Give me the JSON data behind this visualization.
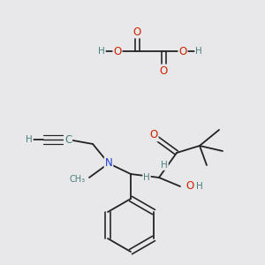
{
  "background_color": "#e8e8ea",
  "fig_width": 3.0,
  "fig_height": 3.0,
  "dpi": 100,
  "colors": {
    "C": "#4a8080",
    "O": "#cc2200",
    "N": "#1a3acc",
    "H": "#4a8080",
    "bond": "#222222"
  },
  "font_size_atom": 8.5,
  "font_size_h": 7.5,
  "font_size_small": 7.0
}
